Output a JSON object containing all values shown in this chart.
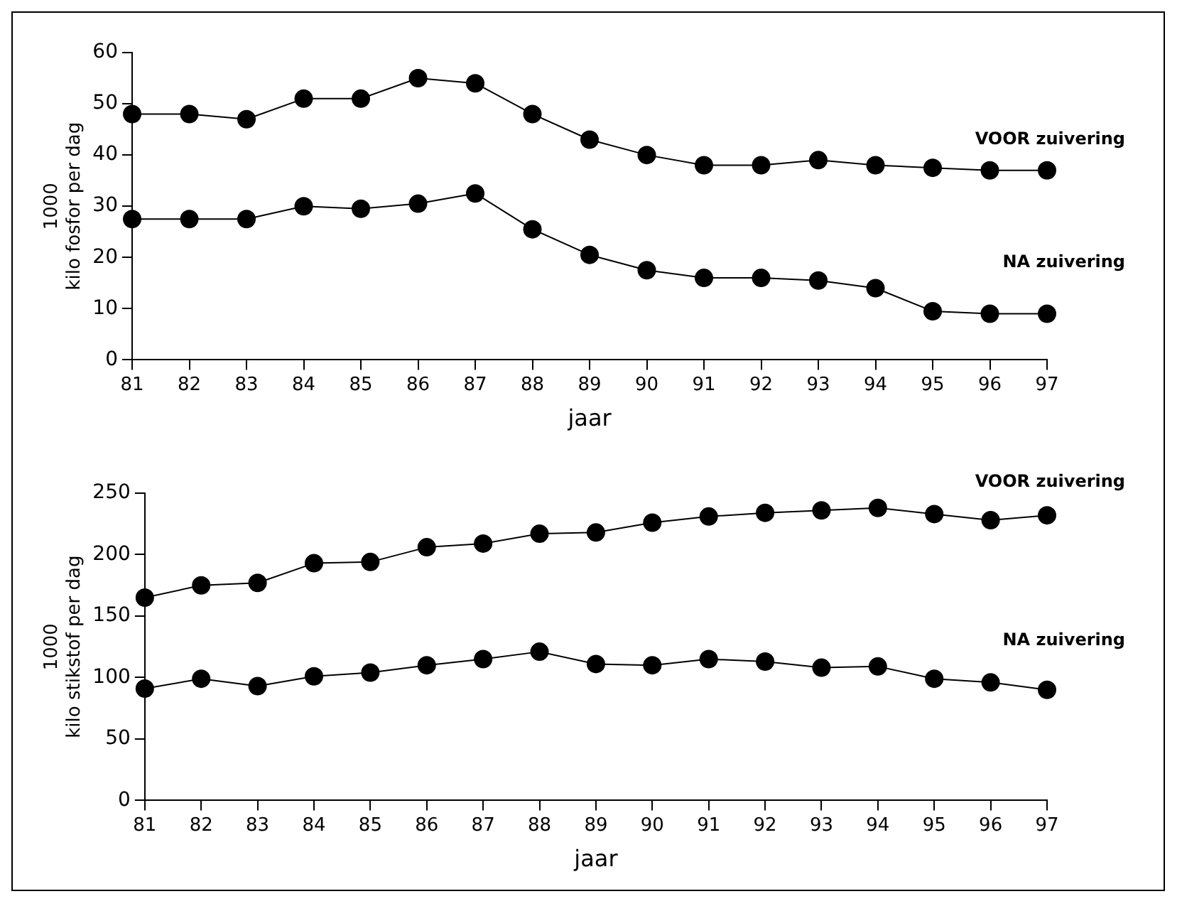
{
  "chart_data": [
    {
      "type": "line",
      "categories": [
        "81",
        "82",
        "83",
        "84",
        "85",
        "86",
        "87",
        "88",
        "89",
        "90",
        "91",
        "92",
        "93",
        "94",
        "95",
        "96",
        "97"
      ],
      "xlabel": "jaar",
      "ylabel": "1000\nkilo fosfor per dag",
      "ylim": [
        0,
        60
      ],
      "yticks": [
        0,
        10,
        20,
        30,
        40,
        50,
        60
      ],
      "grid": false,
      "legend": false,
      "marker": "circle",
      "line_style": "solid",
      "series": [
        {
          "name": "VOOR zuivering",
          "color": "#000000",
          "values": [
            48,
            48,
            47,
            51,
            51,
            55,
            54,
            48,
            43,
            40,
            38,
            38,
            39,
            38,
            37.5,
            37,
            37
          ]
        },
        {
          "name": "NA zuivering",
          "color": "#000000",
          "values": [
            27.5,
            27.5,
            27.5,
            30,
            29.5,
            30.5,
            32.5,
            25.5,
            20.5,
            17.5,
            16,
            16,
            15.5,
            14,
            9.5,
            9,
            9
          ]
        }
      ]
    },
    {
      "type": "line",
      "categories": [
        "81",
        "82",
        "83",
        "84",
        "85",
        "86",
        "87",
        "88",
        "89",
        "90",
        "91",
        "92",
        "93",
        "94",
        "95",
        "96",
        "97"
      ],
      "xlabel": "jaar",
      "ylabel": "1000\nkilo stikstof per dag",
      "ylim": [
        0,
        250
      ],
      "yticks": [
        0,
        50,
        100,
        150,
        200,
        250
      ],
      "grid": false,
      "legend": false,
      "marker": "circle",
      "line_style": "solid",
      "series": [
        {
          "name": "VOOR zuivering",
          "color": "#000000",
          "values": [
            165,
            175,
            177,
            193,
            194,
            206,
            209,
            217,
            218,
            226,
            231,
            234,
            236,
            238,
            233,
            228,
            232
          ]
        },
        {
          "name": "NA zuivering",
          "color": "#000000",
          "values": [
            91,
            99,
            93,
            101,
            104,
            110,
            115,
            121,
            111,
            110,
            115,
            113,
            108,
            109,
            99,
            96,
            90
          ]
        }
      ]
    }
  ]
}
